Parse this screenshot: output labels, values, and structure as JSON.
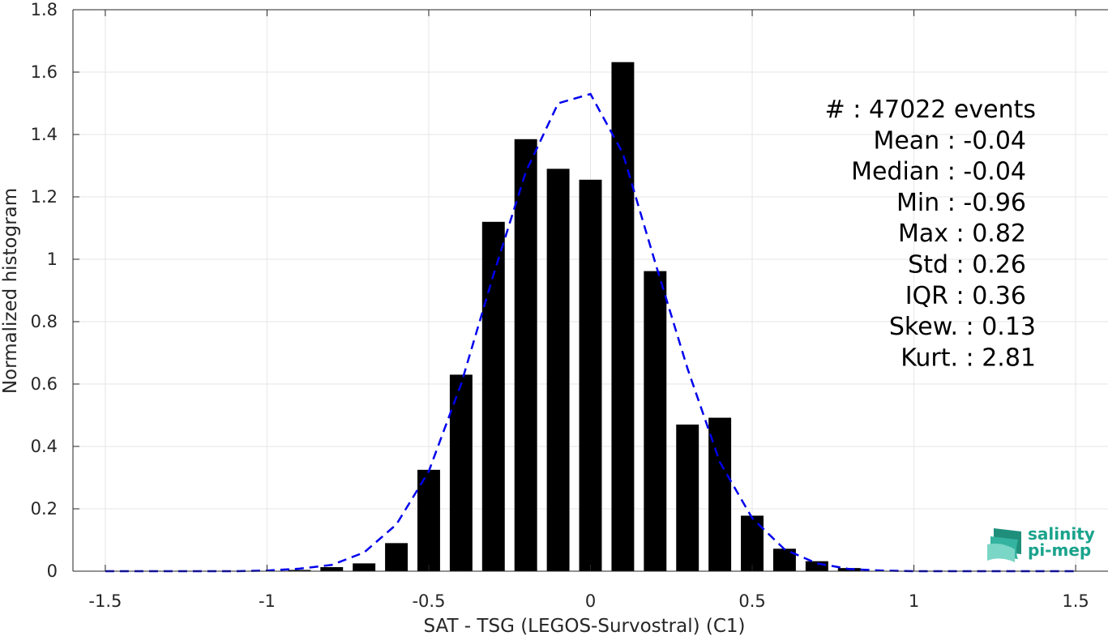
{
  "chart_data": {
    "type": "bar",
    "xlabel": "SAT - TSG (LEGOS-Survostral) (C1)",
    "ylabel": "Normalized histogram",
    "xlim": [
      -1.6,
      1.6
    ],
    "ylim": [
      0,
      1.8
    ],
    "xticks": [
      -1.5,
      -1,
      -0.5,
      0,
      0.5,
      1,
      1.5
    ],
    "xtick_labels": [
      "-1.5",
      "-1",
      "-0.5",
      "0",
      "0.5",
      "1",
      "1.5"
    ],
    "yticks": [
      0,
      0.2,
      0.4,
      0.6,
      0.8,
      1,
      1.2,
      1.4,
      1.6,
      1.8
    ],
    "ytick_labels": [
      "0",
      "0.2",
      "0.4",
      "0.6",
      "0.8",
      "1",
      "1.2",
      "1.4",
      "1.6",
      "1.8"
    ],
    "grid": true,
    "bar_width": 0.07,
    "bars": {
      "color": "#000000",
      "x": [
        -0.9,
        -0.8,
        -0.7,
        -0.6,
        -0.5,
        -0.4,
        -0.3,
        -0.2,
        -0.1,
        0.0,
        0.1,
        0.2,
        0.3,
        0.4,
        0.5,
        0.6,
        0.7,
        0.8
      ],
      "values": [
        0.004,
        0.013,
        0.025,
        0.09,
        0.325,
        0.63,
        1.12,
        1.385,
        1.29,
        1.255,
        1.632,
        0.962,
        0.47,
        0.492,
        0.178,
        0.072,
        0.032,
        0.01
      ]
    },
    "fit_line": {
      "style": "dashed",
      "color": "#0000ee",
      "x": [
        -1.5,
        -1.4,
        -1.3,
        -1.2,
        -1.1,
        -1.0,
        -0.9,
        -0.8,
        -0.7,
        -0.6,
        -0.5,
        -0.4,
        -0.3,
        -0.2,
        -0.1,
        0.0,
        0.1,
        0.2,
        0.3,
        0.4,
        0.5,
        0.6,
        0.7,
        0.8,
        0.9,
        1.0,
        1.1,
        1.2,
        1.3,
        1.4,
        1.5
      ],
      "y": [
        0,
        0,
        0,
        0,
        0,
        0.002,
        0.008,
        0.02,
        0.06,
        0.15,
        0.32,
        0.6,
        0.95,
        1.28,
        1.5,
        1.53,
        1.34,
        0.99,
        0.65,
        0.35,
        0.17,
        0.07,
        0.025,
        0.007,
        0.002,
        0,
        0,
        0,
        0,
        0,
        0
      ]
    }
  },
  "stats": [
    {
      "label": "#  : 47022 events",
      "anchor": "end-wide"
    },
    {
      "label": "Mean : -0.04",
      "anchor": "end"
    },
    {
      "label": "Median : -0.04",
      "anchor": "end"
    },
    {
      "label": "Min : -0.96",
      "anchor": "end"
    },
    {
      "label": "Max : 0.82",
      "anchor": "end"
    },
    {
      "label": "Std : 0.26",
      "anchor": "end"
    },
    {
      "label": "IQR : 0.36",
      "anchor": "end"
    },
    {
      "label": "Skew. : 0.13",
      "anchor": "end-wide"
    },
    {
      "label": "Kurt. : 2.81",
      "anchor": "end-wide"
    }
  ],
  "logo": {
    "line1": "salinity",
    "line2": "pi-mep",
    "icon": "salinity-wave-logo-icon",
    "color": "#1aa38c"
  }
}
